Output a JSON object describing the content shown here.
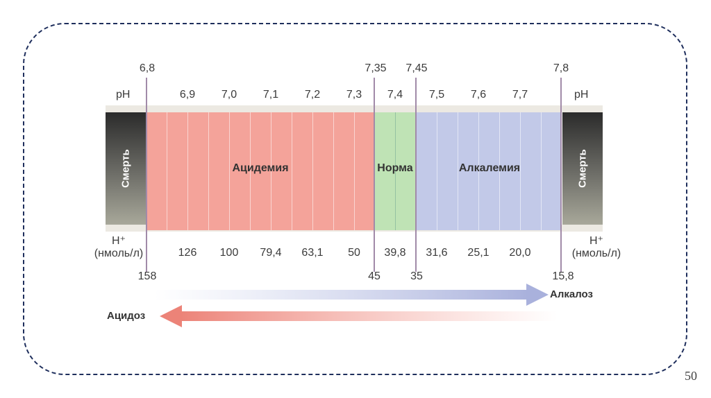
{
  "page_number": "50",
  "ph_label": "pH",
  "h_label": "H⁺",
  "h_unit": "(нмоль/л)",
  "ph_boundaries": [
    "6,8",
    "7,35",
    "7,45",
    "7,8"
  ],
  "ph_ticks": [
    "6,9",
    "7,0",
    "7,1",
    "7,2",
    "7,3",
    "7,4",
    "7,5",
    "7,6",
    "7,7"
  ],
  "h_ticks": [
    "126",
    "100",
    "79,4",
    "63,1",
    "50",
    "39,8",
    "31,6",
    "25,1",
    "20,0"
  ],
  "h_boundaries": [
    "158",
    "45",
    "35",
    "15,8"
  ],
  "zones": {
    "death": "Смерть",
    "acidemia": "Ацидемия",
    "norm": "Норма",
    "alkalemia": "Алкалемия"
  },
  "arrows": {
    "alkalosis": "Алкалоз",
    "acidosis": "Ацидоз"
  },
  "colors": {
    "acidemia": "#f4a39a",
    "norm": "#bfe3b5",
    "alkalemia": "#c2c9e8",
    "death": "#3a3a38",
    "frame": "#1e2e5c"
  }
}
